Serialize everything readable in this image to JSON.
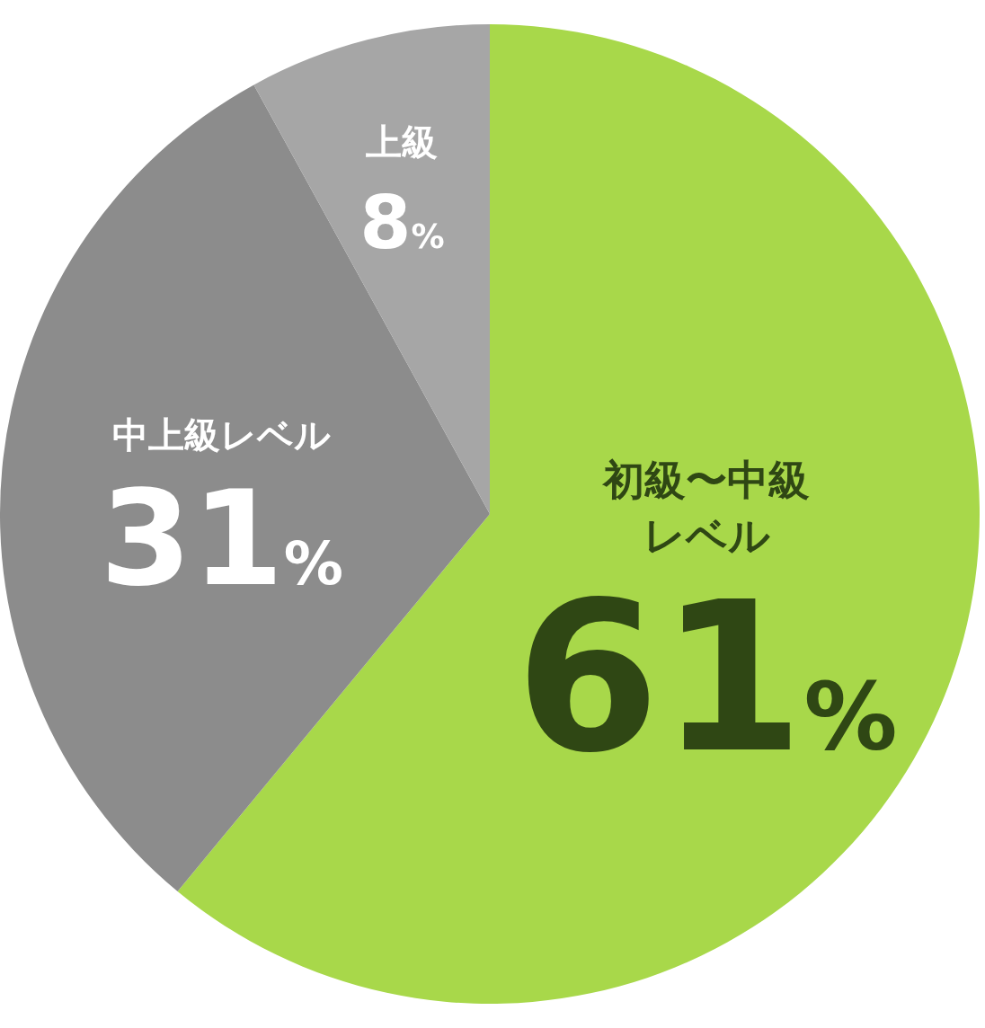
{
  "chart_data": {
    "type": "pie",
    "categories": [
      "初級〜中級レベル",
      "中上級レベル",
      "上級"
    ],
    "values": [
      61,
      31,
      8
    ],
    "colors": [
      "#a8d84a",
      "#8c8c8c",
      "#a6a6a6"
    ],
    "value_labels": [
      "61%",
      "31%",
      "8%"
    ],
    "legend": false
  }
}
